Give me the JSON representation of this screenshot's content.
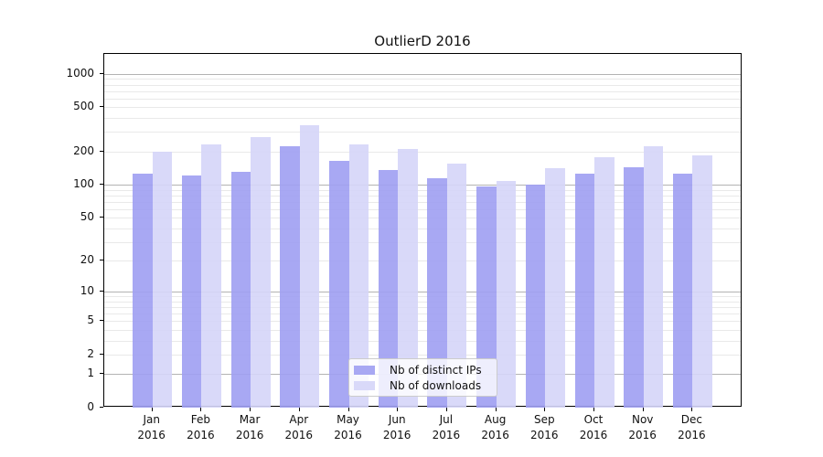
{
  "chart_data": {
    "type": "bar",
    "title": "OutlierD 2016",
    "categories": [
      "Jan 2016",
      "Feb 2016",
      "Mar 2016",
      "Apr 2016",
      "May 2016",
      "Jun 2016",
      "Jul 2016",
      "Aug 2016",
      "Sep 2016",
      "Oct 2016",
      "Nov 2016",
      "Dec 2016"
    ],
    "x_tick_lines": {
      "months": [
        "Jan",
        "Feb",
        "Mar",
        "Apr",
        "May",
        "Jun",
        "Jul",
        "Aug",
        "Sep",
        "Oct",
        "Nov",
        "Dec"
      ],
      "year": "2016"
    },
    "series": [
      {
        "name": "Nb of distinct IPs",
        "color": "#9e9ef2",
        "values": [
          126,
          121,
          130,
          222,
          163,
          137,
          115,
          96,
          100,
          125,
          143,
          126
        ]
      },
      {
        "name": "Nb of downloads",
        "color": "#d5d5f8",
        "values": [
          200,
          230,
          272,
          347,
          232,
          210,
          155,
          108,
          140,
          178,
          222,
          183
        ]
      }
    ],
    "xlabel": "",
    "ylabel": "",
    "y_scale": "log10(1+v)",
    "y_ticks": [
      0,
      1,
      2,
      5,
      10,
      20,
      50,
      100,
      200,
      500,
      1000
    ],
    "y_tick_labels": [
      "0",
      "1",
      "2",
      "5",
      "10",
      "20",
      "50",
      "100",
      "200",
      "500",
      "1000"
    ],
    "ylim": [
      0,
      1500
    ],
    "grid": true,
    "legend_position": "lower center inside"
  }
}
